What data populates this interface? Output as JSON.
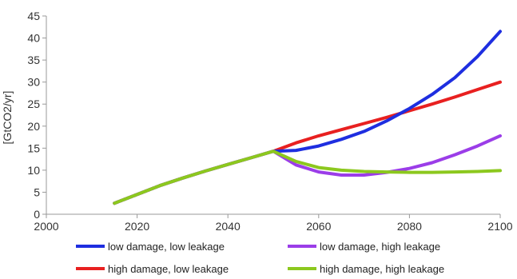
{
  "chart_data": {
    "type": "line",
    "title": "",
    "xlabel": "",
    "ylabel": "[GtCO2/yr]",
    "xlim": [
      2000,
      2100
    ],
    "ylim": [
      0,
      45
    ],
    "x_ticks": [
      2000,
      2020,
      2040,
      2060,
      2080,
      2100
    ],
    "y_ticks": [
      0,
      5,
      10,
      15,
      20,
      25,
      30,
      35,
      40,
      45
    ],
    "grid": "none",
    "legend_position": "bottom",
    "series": [
      {
        "name": "low damage, low leakage",
        "color": "#1e2ee0",
        "points": [
          [
            2015,
            2.5
          ],
          [
            2020,
            4.5
          ],
          [
            2025,
            6.5
          ],
          [
            2030,
            8.2
          ],
          [
            2035,
            9.8
          ],
          [
            2040,
            11.3
          ],
          [
            2045,
            12.8
          ],
          [
            2050,
            14.3
          ],
          [
            2055,
            14.5
          ],
          [
            2060,
            15.5
          ],
          [
            2065,
            17.0
          ],
          [
            2070,
            18.8
          ],
          [
            2075,
            21.2
          ],
          [
            2080,
            24.0
          ],
          [
            2085,
            27.2
          ],
          [
            2090,
            31.0
          ],
          [
            2095,
            35.8
          ],
          [
            2100,
            41.5
          ]
        ]
      },
      {
        "name": "low damage, high leakage",
        "color": "#9b3de8",
        "points": [
          [
            2015,
            2.5
          ],
          [
            2020,
            4.5
          ],
          [
            2025,
            6.5
          ],
          [
            2030,
            8.2
          ],
          [
            2035,
            9.8
          ],
          [
            2040,
            11.3
          ],
          [
            2045,
            12.8
          ],
          [
            2050,
            14.3
          ],
          [
            2055,
            11.2
          ],
          [
            2060,
            9.6
          ],
          [
            2065,
            8.9
          ],
          [
            2070,
            8.9
          ],
          [
            2075,
            9.5
          ],
          [
            2080,
            10.4
          ],
          [
            2085,
            11.7
          ],
          [
            2090,
            13.5
          ],
          [
            2095,
            15.5
          ],
          [
            2100,
            17.8
          ]
        ]
      },
      {
        "name": "high damage, low leakage",
        "color": "#e82020",
        "points": [
          [
            2015,
            2.5
          ],
          [
            2020,
            4.5
          ],
          [
            2025,
            6.5
          ],
          [
            2030,
            8.2
          ],
          [
            2035,
            9.8
          ],
          [
            2040,
            11.3
          ],
          [
            2045,
            12.8
          ],
          [
            2050,
            14.3
          ],
          [
            2055,
            16.2
          ],
          [
            2060,
            17.8
          ],
          [
            2065,
            19.2
          ],
          [
            2070,
            20.6
          ],
          [
            2075,
            22.0
          ],
          [
            2080,
            23.5
          ],
          [
            2085,
            25.0
          ],
          [
            2090,
            26.6
          ],
          [
            2095,
            28.3
          ],
          [
            2100,
            30.0
          ]
        ]
      },
      {
        "name": "high damage, high leakage",
        "color": "#8cc81e",
        "points": [
          [
            2015,
            2.5
          ],
          [
            2020,
            4.5
          ],
          [
            2025,
            6.5
          ],
          [
            2030,
            8.2
          ],
          [
            2035,
            9.8
          ],
          [
            2040,
            11.3
          ],
          [
            2045,
            12.8
          ],
          [
            2050,
            14.3
          ],
          [
            2055,
            12.0
          ],
          [
            2060,
            10.6
          ],
          [
            2065,
            10.0
          ],
          [
            2070,
            9.7
          ],
          [
            2075,
            9.6
          ],
          [
            2080,
            9.5
          ],
          [
            2085,
            9.5
          ],
          [
            2090,
            9.6
          ],
          [
            2095,
            9.7
          ],
          [
            2100,
            9.9
          ]
        ]
      }
    ],
    "legend_order": [
      0,
      1,
      2,
      3
    ]
  }
}
